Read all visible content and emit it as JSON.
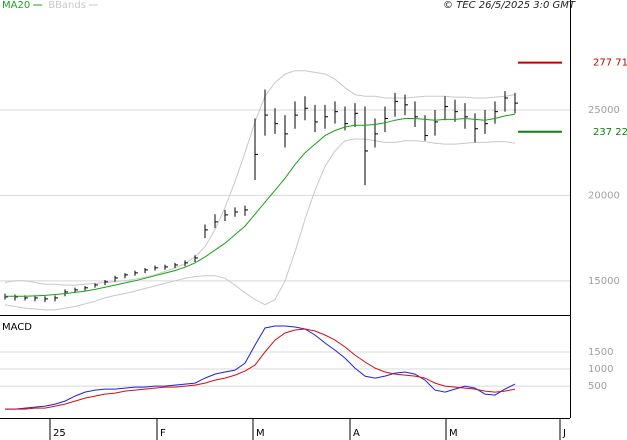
{
  "chart_data": [
    {
      "type": "ohlc",
      "source": "© TEC 26/5/2025 3:0 GMT",
      "ylim": [
        13000,
        30850
      ],
      "yticks": [
        15000,
        20000,
        25000
      ],
      "grid": true,
      "xlim": [
        0,
        57
      ],
      "high": [
        14250,
        14200,
        14150,
        14150,
        14100,
        14150,
        14500,
        14600,
        14700,
        14850,
        15050,
        15300,
        15450,
        15600,
        15750,
        15900,
        15950,
        16050,
        16200,
        16500,
        18300,
        18900,
        19150,
        19300,
        19400,
        24500,
        26200,
        25100,
        24700,
        25500,
        25800,
        25300,
        25300,
        25500,
        25200,
        25400,
        25200,
        24500,
        25200,
        26000,
        25900,
        25500,
        24700,
        25000,
        25800,
        25600,
        25400,
        24800,
        25000,
        25500,
        26100,
        26000
      ],
      "low": [
        13900,
        13850,
        13850,
        13800,
        13750,
        13800,
        14100,
        14300,
        14400,
        14600,
        14750,
        14950,
        15150,
        15300,
        15450,
        15600,
        15650,
        15750,
        15850,
        16100,
        17500,
        18100,
        18500,
        18750,
        18800,
        20900,
        23500,
        23600,
        22800,
        23900,
        24400,
        23700,
        23900,
        24200,
        23800,
        24000,
        20600,
        22800,
        23700,
        24600,
        24700,
        24000,
        23200,
        23500,
        24400,
        24300,
        23900,
        23100,
        23600,
        24200,
        24900,
        24800
      ],
      "close": [
        14060,
        14060,
        14000,
        14000,
        13945,
        14000,
        14350,
        14470,
        14590,
        14760,
        14940,
        15170,
        15350,
        15465,
        15640,
        15760,
        15815,
        15930,
        16050,
        16340,
        17980,
        18450,
        18860,
        19030,
        19150,
        22400,
        24700,
        24200,
        23600,
        24700,
        25100,
        24300,
        24600,
        24900,
        24200,
        24800,
        22600,
        23600,
        24500,
        25500,
        25300,
        24600,
        23500,
        24300,
        25200,
        24900,
        24600,
        23900,
        24200,
        24900,
        25700,
        25400
      ],
      "color": "#000000",
      "series": [
        {
          "name": "MA20",
          "color": "#1aa01a",
          "values": [
            14100,
            14100,
            14100,
            14120,
            14150,
            14200,
            14250,
            14320,
            14400,
            14500,
            14620,
            14750,
            14880,
            15000,
            15150,
            15300,
            15450,
            15600,
            15800,
            16050,
            16400,
            16800,
            17200,
            17700,
            18200,
            18900,
            19600,
            20300,
            21000,
            21800,
            22500,
            23000,
            23500,
            23800,
            24000,
            24100,
            24100,
            24150,
            24250,
            24400,
            24500,
            24500,
            24450,
            24400,
            24450,
            24450,
            24500,
            24450,
            24400,
            24500,
            24650,
            24750
          ]
        },
        {
          "name": "BBands",
          "color": "#c8c8c8",
          "upper": [
            14900,
            15000,
            15000,
            14900,
            14800,
            14800,
            14750,
            14750,
            14800,
            14850,
            14900,
            14950,
            15000,
            15100,
            15200,
            15350,
            15550,
            15750,
            16000,
            16400,
            17000,
            18000,
            19300,
            20800,
            22500,
            24300,
            25800,
            26600,
            27100,
            27300,
            27300,
            27200,
            27100,
            26800,
            26300,
            25900,
            25800,
            25800,
            25700,
            25700,
            25700,
            25750,
            25800,
            25800,
            25800,
            25750,
            25750,
            25700,
            25700,
            25750,
            25800,
            25900
          ],
          "lower": [
            13600,
            13500,
            13400,
            13350,
            13300,
            13300,
            13400,
            13500,
            13650,
            13800,
            14000,
            14150,
            14250,
            14400,
            14550,
            14700,
            14850,
            15000,
            15150,
            15250,
            15300,
            15300,
            15150,
            14750,
            14300,
            13900,
            13600,
            13900,
            15000,
            16700,
            18600,
            20300,
            21700,
            22600,
            23200,
            23300,
            23300,
            23200,
            23100,
            23100,
            23200,
            23200,
            23150,
            23050,
            23000,
            23000,
            23050,
            23100,
            23100,
            23150,
            23150,
            23050
          ]
        }
      ],
      "annotations": [
        {
          "value": 27771,
          "label": "277 71",
          "color": "#c00000"
        },
        {
          "value": 23722,
          "label": "237 22",
          "color": "#108010"
        }
      ]
    },
    {
      "type": "line",
      "title": "MACD",
      "ylim": [
        -350,
        2500
      ],
      "yticks": [
        500,
        1000,
        1500
      ],
      "grid": true,
      "xlim": [
        0,
        57
      ],
      "xticks": [
        {
          "value": 5,
          "label": "25"
        },
        {
          "value": 15.7,
          "label": "F"
        },
        {
          "value": 25.3,
          "label": "M"
        },
        {
          "value": 35,
          "label": "A"
        },
        {
          "value": 44.6,
          "label": "M"
        },
        {
          "value": 56,
          "label": "J"
        }
      ],
      "series": [
        {
          "color": "#1f1fe0",
          "values": [
            -176,
            -176,
            -147,
            -117,
            -88,
            -29,
            59,
            206,
            324,
            382,
            412,
            412,
            441,
            471,
            471,
            500,
            500,
            529,
            559,
            588,
            735,
            853,
            912,
            970,
            1176,
            1705,
            2205,
            2264,
            2264,
            2235,
            2176,
            2000,
            1764,
            1558,
            1323,
            1029,
            794,
            735,
            794,
            882,
            912,
            853,
            676,
            382,
            324,
            412,
            500,
            441,
            265,
            235,
            412,
            559
          ]
        },
        {
          "color": "#d01010",
          "values": [
            -176,
            -176,
            -176,
            -147,
            -147,
            -88,
            -29,
            59,
            147,
            206,
            265,
            294,
            353,
            382,
            412,
            441,
            471,
            471,
            500,
            529,
            588,
            676,
            735,
            823,
            941,
            1117,
            1500,
            1852,
            2058,
            2146,
            2176,
            2117,
            2000,
            1852,
            1647,
            1411,
            1206,
            1029,
            912,
            853,
            823,
            794,
            735,
            588,
            500,
            471,
            441,
            412,
            353,
            324,
            353,
            412
          ]
        }
      ]
    }
  ]
}
